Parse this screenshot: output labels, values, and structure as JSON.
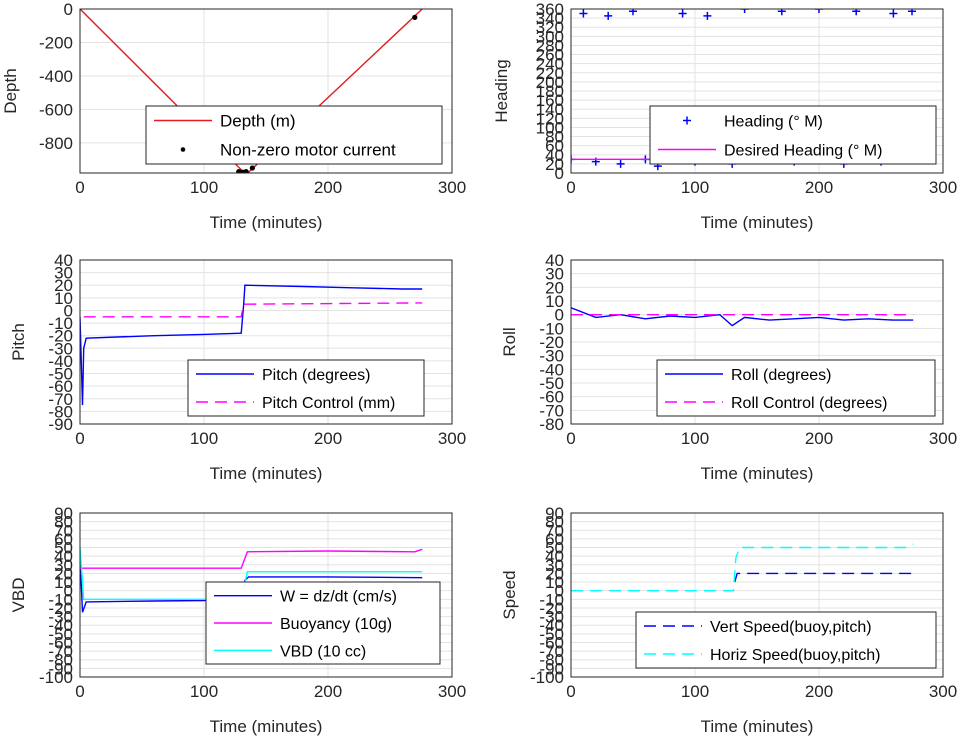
{
  "chart_data": [
    {
      "id": "depth",
      "type": "line",
      "xlabel": "Time (minutes)",
      "ylabel": "Depth",
      "xlim": [
        0,
        300
      ],
      "ylim": [
        -980,
        0
      ],
      "xticks": [
        0,
        100,
        200,
        300
      ],
      "yticks": [
        0,
        -200,
        -400,
        -600,
        -800
      ],
      "legend_placement": "bottom-right",
      "series": [
        {
          "name": "Depth (m)",
          "style": "solid",
          "color": "#e41a1c",
          "points": [
            [
              0,
              0
            ],
            [
              132,
              -975
            ],
            [
              136,
              -975
            ],
            [
              276,
              0
            ]
          ]
        },
        {
          "name": "Non-zero motor current",
          "style": "dot",
          "color": "#000000",
          "points": [
            [
              128,
              -972
            ],
            [
              130,
              -975
            ],
            [
              132,
              -975
            ],
            [
              134,
              -972
            ],
            [
              139,
              -950
            ],
            [
              270,
              -50
            ]
          ]
        }
      ]
    },
    {
      "id": "heading",
      "type": "scatter",
      "xlabel": "Time (minutes)",
      "ylabel": "Heading",
      "xlim": [
        0,
        300
      ],
      "ylim": [
        0,
        360
      ],
      "xticks": [
        0,
        100,
        200,
        300
      ],
      "yticks": [
        0,
        20,
        40,
        60,
        80,
        100,
        120,
        140,
        160,
        180,
        200,
        220,
        240,
        260,
        280,
        300,
        320,
        340,
        360
      ],
      "legend_placement": "bottom-right",
      "series": [
        {
          "name": "Heading (° M)",
          "style": "plus",
          "color": "#0000ff",
          "points": [
            [
              0,
              30
            ],
            [
              10,
              350
            ],
            [
              20,
              25
            ],
            [
              30,
              345
            ],
            [
              40,
              20
            ],
            [
              50,
              355
            ],
            [
              60,
              30
            ],
            [
              70,
              15
            ],
            [
              80,
              40
            ],
            [
              90,
              350
            ],
            [
              100,
              25
            ],
            [
              110,
              345
            ],
            [
              120,
              35
            ],
            [
              130,
              20
            ],
            [
              140,
              360
            ],
            [
              150,
              30
            ],
            [
              160,
              45
            ],
            [
              170,
              355
            ],
            [
              180,
              25
            ],
            [
              190,
              35
            ],
            [
              200,
              360
            ],
            [
              210,
              30
            ],
            [
              220,
              20
            ],
            [
              230,
              355
            ],
            [
              240,
              40
            ],
            [
              250,
              25
            ],
            [
              260,
              350
            ],
            [
              270,
              30
            ],
            [
              275,
              355
            ]
          ]
        },
        {
          "name": "Desired Heading (° M)",
          "style": "solid",
          "color": "#ff00ff",
          "points": [
            [
              0,
              30
            ],
            [
              276,
              30
            ]
          ]
        }
      ]
    },
    {
      "id": "pitch",
      "type": "line",
      "xlabel": "Time (minutes)",
      "ylabel": "Pitch",
      "xlim": [
        0,
        300
      ],
      "ylim": [
        -90,
        40
      ],
      "xticks": [
        0,
        100,
        200,
        300
      ],
      "yticks": [
        40,
        30,
        20,
        10,
        0,
        -10,
        -20,
        -30,
        -40,
        -50,
        -60,
        -70,
        -80,
        -90
      ],
      "legend_placement": "bottom-right",
      "series": [
        {
          "name": "Pitch (degrees)",
          "style": "solid",
          "color": "#0000ff",
          "points": [
            [
              0,
              -5
            ],
            [
              2,
              -75
            ],
            [
              3,
              -30
            ],
            [
              5,
              -22
            ],
            [
              30,
              -21
            ],
            [
              60,
              -20
            ],
            [
              100,
              -19
            ],
            [
              130,
              -18
            ],
            [
              132,
              5
            ],
            [
              133,
              20
            ],
            [
              180,
              19
            ],
            [
              220,
              18
            ],
            [
              260,
              17
            ],
            [
              276,
              17
            ]
          ]
        },
        {
          "name": "Pitch Control (mm)",
          "style": "dash",
          "color": "#ff00ff",
          "points": [
            [
              3,
              -5
            ],
            [
              130,
              -5
            ],
            [
              132,
              5
            ],
            [
              276,
              6
            ]
          ]
        }
      ]
    },
    {
      "id": "roll",
      "type": "line",
      "xlabel": "Time (minutes)",
      "ylabel": "Roll",
      "xlim": [
        0,
        300
      ],
      "ylim": [
        -80,
        40
      ],
      "xticks": [
        0,
        100,
        200,
        300
      ],
      "yticks": [
        40,
        30,
        20,
        10,
        0,
        -10,
        -20,
        -30,
        -40,
        -50,
        -60,
        -70,
        -80
      ],
      "legend_placement": "bottom-right",
      "series": [
        {
          "name": "Roll (degrees)",
          "style": "solid",
          "color": "#0000ff",
          "points": [
            [
              0,
              5
            ],
            [
              20,
              -2
            ],
            [
              40,
              0
            ],
            [
              60,
              -3
            ],
            [
              80,
              -1
            ],
            [
              100,
              -2
            ],
            [
              120,
              0
            ],
            [
              130,
              -8
            ],
            [
              140,
              -2
            ],
            [
              160,
              -4
            ],
            [
              180,
              -3
            ],
            [
              200,
              -2
            ],
            [
              220,
              -4
            ],
            [
              240,
              -3
            ],
            [
              260,
              -4
            ],
            [
              276,
              -4
            ]
          ]
        },
        {
          "name": "Roll Control (degrees)",
          "style": "dash",
          "color": "#ff00ff",
          "points": [
            [
              0,
              0
            ],
            [
              276,
              0
            ]
          ]
        }
      ]
    },
    {
      "id": "vbd",
      "type": "line",
      "xlabel": "Time (minutes)",
      "ylabel": "VBD",
      "xlim": [
        0,
        300
      ],
      "ylim": [
        -100,
        90
      ],
      "xticks": [
        0,
        100,
        200,
        300
      ],
      "yticks": [
        90,
        80,
        70,
        60,
        50,
        40,
        30,
        20,
        10,
        0,
        -10,
        -20,
        -30,
        -40,
        -50,
        -60,
        -70,
        -80,
        -90,
        -100
      ],
      "legend_placement": "bottom-right",
      "series": [
        {
          "name": "W = dz/dt (cm/s)",
          "style": "solid",
          "color": "#0000ff",
          "points": [
            [
              0,
              40
            ],
            [
              2,
              -25
            ],
            [
              5,
              -13
            ],
            [
              60,
              -12
            ],
            [
              130,
              -11
            ],
            [
              133,
              12
            ],
            [
              136,
              16
            ],
            [
              200,
              16
            ],
            [
              276,
              15
            ]
          ]
        },
        {
          "name": "Buoyancy (10g)",
          "style": "solid",
          "color": "#ff00ff",
          "points": [
            [
              0,
              26
            ],
            [
              130,
              26
            ],
            [
              135,
              45
            ],
            [
              200,
              46
            ],
            [
              270,
              45
            ],
            [
              276,
              48
            ]
          ]
        },
        {
          "name": "VBD (10 cc)",
          "style": "solid",
          "color": "#00ffff",
          "points": [
            [
              0,
              50
            ],
            [
              3,
              -10
            ],
            [
              130,
              -10
            ],
            [
              135,
              22
            ],
            [
              200,
              22
            ],
            [
              276,
              22
            ]
          ]
        }
      ]
    },
    {
      "id": "speed",
      "type": "line",
      "xlabel": "Time (minutes)",
      "ylabel": "Speed",
      "xlim": [
        0,
        300
      ],
      "ylim": [
        -100,
        90
      ],
      "xticks": [
        0,
        100,
        200,
        300
      ],
      "yticks": [
        90,
        80,
        70,
        60,
        50,
        40,
        30,
        20,
        10,
        0,
        -10,
        -20,
        -30,
        -40,
        -50,
        -60,
        -70,
        -80,
        -90,
        -100
      ],
      "legend_placement": "bottom-right",
      "series": [
        {
          "name": "Vert Speed(buoy,pitch)",
          "style": "dash",
          "color": "#0000ff",
          "points": [
            [
              132,
              10
            ],
            [
              134,
              20
            ],
            [
              200,
              20
            ],
            [
              276,
              20
            ]
          ]
        },
        {
          "name": "Horiz Speed(buoy,pitch)",
          "style": "dash",
          "color": "#00ffff",
          "points": [
            [
              0,
              0
            ],
            [
              131,
              0
            ],
            [
              133,
              38
            ],
            [
              136,
              50
            ],
            [
              200,
              50
            ],
            [
              270,
              50
            ],
            [
              276,
              54
            ]
          ]
        }
      ]
    }
  ]
}
